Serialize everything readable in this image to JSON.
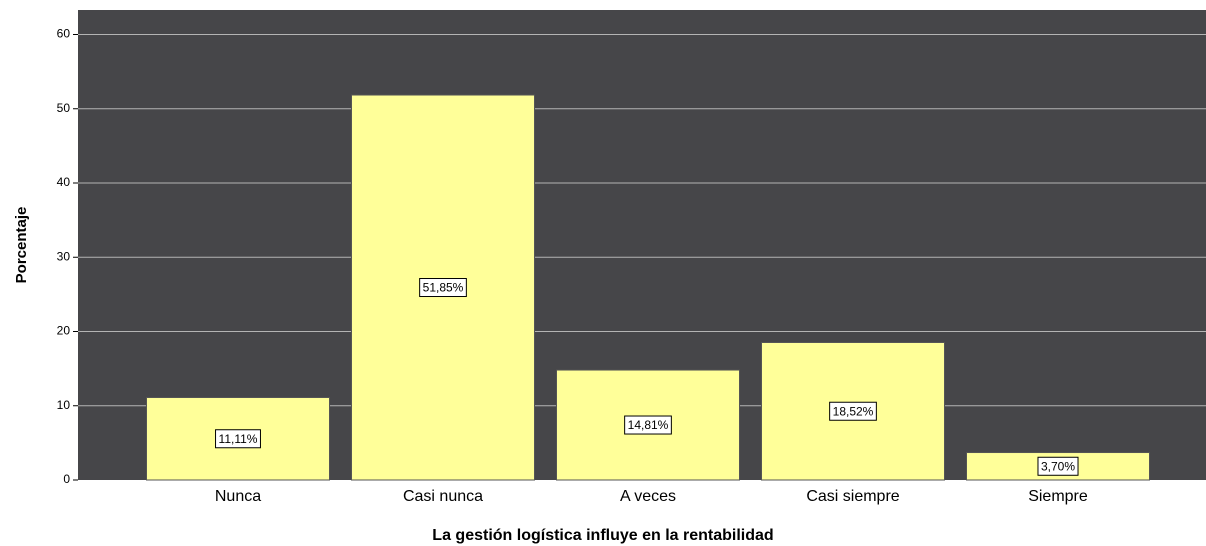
{
  "chart_data": {
    "type": "bar",
    "x_label": "La gestión logística influye en la rentabilidad",
    "y_label": "Porcentaje",
    "categories": [
      "Nunca",
      "Casi nunca",
      "A veces",
      "Casi siempre",
      "Siempre"
    ],
    "values": [
      11.11,
      51.85,
      14.81,
      18.52,
      3.7
    ],
    "value_labels": [
      "11,11%",
      "51,85%",
      "14,81%",
      "18,52%",
      "3,70%"
    ],
    "color": "#ffff99",
    "ylim": [
      0,
      63.3
    ],
    "yticks": [
      0,
      10,
      20,
      30,
      40,
      50,
      60
    ],
    "grid": true
  }
}
